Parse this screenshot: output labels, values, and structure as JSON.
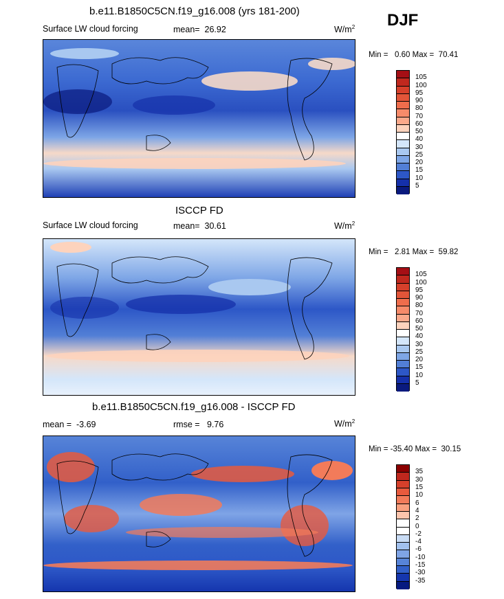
{
  "season": "DJF",
  "panels": [
    {
      "id": "model",
      "header": "b.e11.B1850C5CN.f19_g16.008 (yrs 181-200)",
      "field": "Surface LW cloud forcing",
      "mean_label": "mean=",
      "mean": "26.92",
      "units": "W/m",
      "units_exp": "2",
      "min_label": "Min =",
      "min": "0.60",
      "max_label": "Max =",
      "max": "70.41",
      "colorbar_levels": [
        "105",
        "100",
        "95",
        "90",
        "80",
        "70",
        "60",
        "50",
        "40",
        "30",
        "25",
        "20",
        "15",
        "10",
        "5"
      ],
      "colorbar_colors": [
        "#a50f15",
        "#c0281e",
        "#d6402b",
        "#e25539",
        "#ef6d4c",
        "#f78b6a",
        "#fba98b",
        "#fdd3bd",
        "#ffffff",
        "#d4e6fa",
        "#a9c8f0",
        "#7ea6e6",
        "#527fd6",
        "#2d57c7",
        "#1530aa",
        "#0a1a7e"
      ]
    },
    {
      "id": "obs",
      "header": "ISCCP FD",
      "field": "Surface LW cloud forcing",
      "mean_label": "mean=",
      "mean": "30.61",
      "units": "W/m",
      "units_exp": "2",
      "min_label": "Min =",
      "min": "2.81",
      "max_label": "Max =",
      "max": "59.82",
      "colorbar_levels": [
        "105",
        "100",
        "95",
        "90",
        "80",
        "70",
        "60",
        "50",
        "40",
        "30",
        "25",
        "20",
        "15",
        "10",
        "5"
      ],
      "colorbar_colors": [
        "#a50f15",
        "#c0281e",
        "#d6402b",
        "#e25539",
        "#ef6d4c",
        "#f78b6a",
        "#fba98b",
        "#fdd3bd",
        "#ffffff",
        "#d4e6fa",
        "#a9c8f0",
        "#7ea6e6",
        "#527fd6",
        "#2d57c7",
        "#1530aa",
        "#0a1a7e"
      ]
    },
    {
      "id": "diff",
      "header": "b.e11.B1850C5CN.f19_g16.008 - ISCCP FD",
      "mean_label": "mean =",
      "mean": "-3.69",
      "rmse_label": "rmse =",
      "rmse": "9.76",
      "units": "W/m",
      "units_exp": "2",
      "min_label": "Min =",
      "min": "-35.40",
      "max_label": "Max =",
      "max": "30.15",
      "colorbar_levels": [
        "35",
        "30",
        "15",
        "10",
        "6",
        "4",
        "2",
        "0",
        "-2",
        "-4",
        "-6",
        "-10",
        "-15",
        "-30",
        "-35"
      ],
      "colorbar_colors": [
        "#8b0000",
        "#c0281e",
        "#d6402b",
        "#e85a3d",
        "#f27b5a",
        "#f9a07f",
        "#fcc5ad",
        "#ffffff",
        "#ffffff",
        "#c9dcf5",
        "#a2c1ee",
        "#7fa4e6",
        "#5784d8",
        "#3260c9",
        "#1536ae",
        "#061a80"
      ]
    }
  ]
}
